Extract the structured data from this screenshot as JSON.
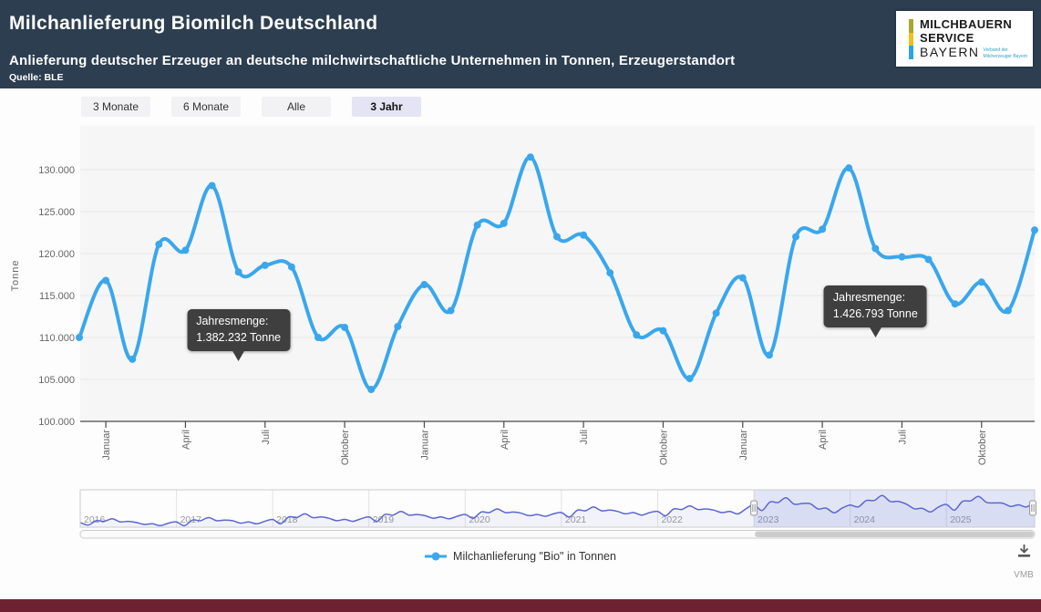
{
  "header": {
    "title": "Milchanlieferung Biomilch Deutschland",
    "subtitle": "Anlieferung deutscher Erzeuger an deutsche milchwirtschaftliche Unternehmen in Tonnen, Erzeugerstandort",
    "source": "Quelle: BLE",
    "logo": {
      "line1": "MILCHBAUERN",
      "line2": "SERVICE",
      "line3": "BAYERN",
      "tagline1": "Verband der",
      "tagline2": "Milcherzeuger Bayern",
      "stripe_colors": [
        "#a8a82f",
        "#f3c018",
        "#2aa6db"
      ]
    }
  },
  "range_selector": {
    "buttons": [
      {
        "label": "3 Monate",
        "selected": false
      },
      {
        "label": "6 Monate",
        "selected": false
      },
      {
        "label": "Alle",
        "selected": false
      },
      {
        "label": "3 Jahr",
        "selected": true
      }
    ]
  },
  "chart_data": {
    "type": "line",
    "title": "",
    "xlabel": "",
    "ylabel": "Tonne",
    "grid": true,
    "legend_position": "bottom-center",
    "series_color": "#3aa7ec",
    "ylim": [
      98500,
      133500
    ],
    "yticks": [
      100000,
      105000,
      110000,
      115000,
      120000,
      125000,
      130000
    ],
    "x_tick_month_labels": {
      "01": "Januar",
      "04": "April",
      "07": "Juli",
      "10": "Oktober"
    },
    "series": [
      {
        "name": "Milchanlieferung \"Bio\" in Tonnen",
        "months": [
          "2022-12",
          "2023-01",
          "2023-02",
          "2023-03",
          "2023-04",
          "2023-05",
          "2023-06",
          "2023-07",
          "2023-08",
          "2023-09",
          "2023-10",
          "2023-11",
          "2023-12",
          "2024-01",
          "2024-02",
          "2024-03",
          "2024-04",
          "2024-05",
          "2024-06",
          "2024-07",
          "2024-08",
          "2024-09",
          "2024-10",
          "2024-11",
          "2024-12",
          "2025-01",
          "2025-02",
          "2025-03",
          "2025-04",
          "2025-05",
          "2025-06",
          "2025-07",
          "2025-08",
          "2025-09",
          "2025-10",
          "2025-11",
          "2025-12"
        ],
        "values": [
          110000,
          116800,
          107400,
          121100,
          120400,
          128100,
          117800,
          118600,
          118400,
          110000,
          111200,
          103800,
          111300,
          116300,
          113200,
          123400,
          123600,
          131500,
          122000,
          122200,
          117700,
          110300,
          110800,
          105100,
          112900,
          117100,
          107900,
          122000,
          122900,
          130200,
          120600,
          119600,
          119300,
          114000,
          116600,
          113200,
          122800
        ]
      }
    ],
    "tooltips": [
      {
        "label": "Jahresmenge:",
        "value": "1.382.232 Tonne",
        "anchor_month": "2023-06"
      },
      {
        "label": "Jahresmenge:",
        "value": "1.426.793 Tonne",
        "anchor_month": "2025-06"
      }
    ],
    "navigator": {
      "start_year": 2016,
      "year_labels": [
        "2016",
        "2017",
        "2018",
        "2019",
        "2020",
        "2021",
        "2022",
        "2023",
        "2024",
        "2025"
      ],
      "selected_start_month": "2023-01",
      "values": [
        88000,
        84000,
        91000,
        90000,
        94000,
        89000,
        90000,
        88000,
        85000,
        86000,
        83000,
        87000,
        89000,
        83000,
        92000,
        91000,
        96000,
        91000,
        92000,
        91000,
        87000,
        89000,
        86000,
        90000,
        93000,
        86000,
        97000,
        96000,
        102000,
        96000,
        97000,
        95000,
        91000,
        93000,
        90000,
        94000,
        97000,
        90000,
        101000,
        100000,
        106000,
        100000,
        101000,
        99000,
        95000,
        97000,
        94000,
        98000,
        101000,
        95000,
        105000,
        104000,
        110000,
        104000,
        105000,
        103000,
        99000,
        101000,
        98000,
        102000,
        104000,
        97000,
        108000,
        107000,
        113000,
        107000,
        108000,
        106000,
        102000,
        104000,
        100000,
        104000,
        106000,
        99000,
        110000,
        109000,
        115000,
        109000,
        110000,
        108000,
        104000,
        106000,
        102000,
        110000,
        116800,
        107400,
        121100,
        120400,
        128100,
        117800,
        118600,
        118400,
        110000,
        111200,
        103800,
        111300,
        116300,
        113200,
        123400,
        123600,
        131500,
        122000,
        122200,
        117700,
        110300,
        110800,
        105100,
        112900,
        117100,
        107900,
        122000,
        122900,
        130200,
        120600,
        119600,
        119300,
        114000,
        116600,
        113200,
        122800
      ]
    }
  },
  "footer": {
    "legend_label": "Milchanlieferung \"Bio\" in Tonnen",
    "watermark": "VMB"
  }
}
